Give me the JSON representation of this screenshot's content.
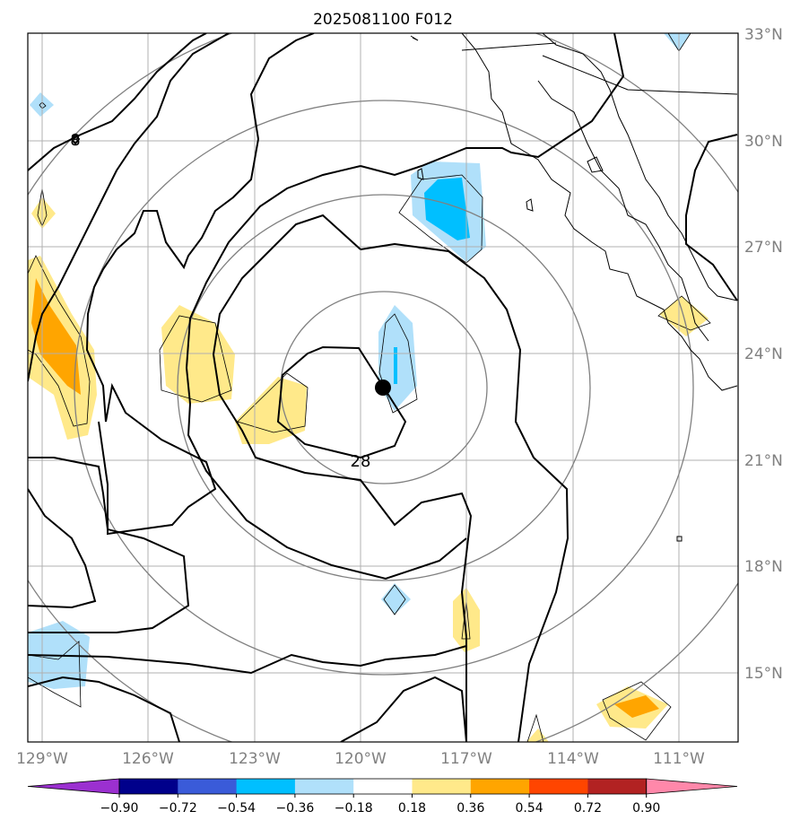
{
  "title": "2025081100 F012",
  "map": {
    "lat_labels": [
      "33°N",
      "30°N",
      "27°N",
      "24°N",
      "21°N",
      "18°N",
      "15°N"
    ],
    "lon_labels": [
      "129°W",
      "126°W",
      "123°W",
      "120°W",
      "117°W",
      "114°W",
      "111°W"
    ],
    "contour_labels": [
      "8",
      "28"
    ],
    "storm_center": {
      "lat": 23.0,
      "lon": -119.3,
      "name": "storm-center"
    }
  },
  "colorbar": {
    "tick_labels": [
      "−0.90",
      "−0.72",
      "−0.54",
      "−0.36",
      "−0.18",
      "0.18",
      "0.36",
      "0.54",
      "0.72",
      "0.90"
    ],
    "colors": [
      "#9b30d0",
      "#00008b",
      "#3a5bd9",
      "#00bfff",
      "#b0e0fa",
      "#ffffff",
      "#ffe98a",
      "#ffa500",
      "#ff4500",
      "#b22222",
      "#ff88aa"
    ]
  }
}
